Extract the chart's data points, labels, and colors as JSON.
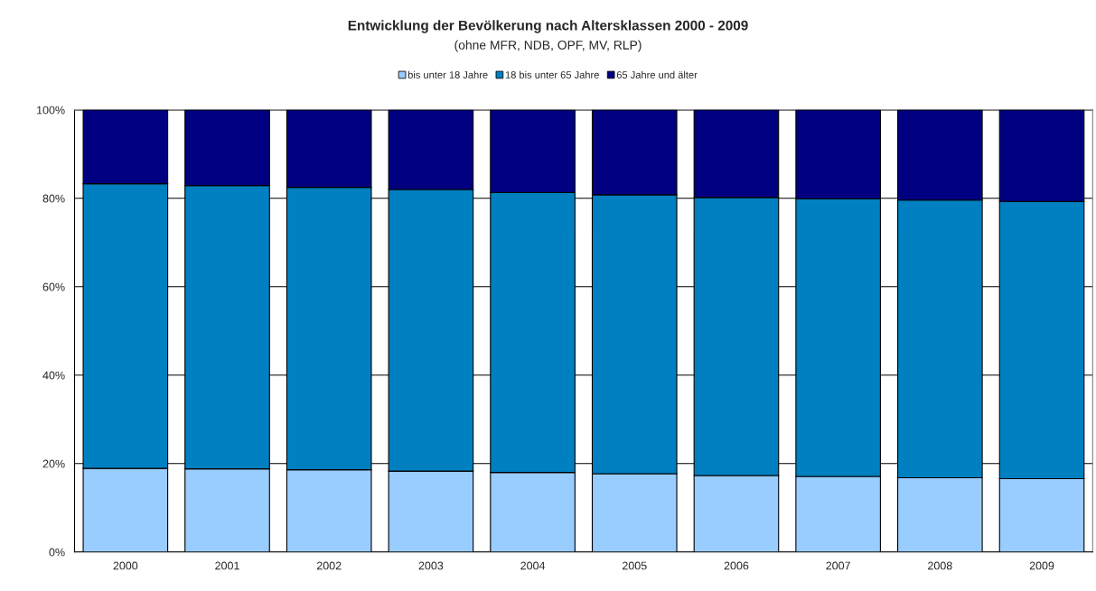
{
  "chart_data": {
    "type": "bar",
    "title": "Entwicklung der Bevölkerung nach Altersklassen 2000 - 2009",
    "subtitle": "(ohne MFR, NDB, OPF, MV, RLP)",
    "categories": [
      "2000",
      "2001",
      "2002",
      "2003",
      "2004",
      "2005",
      "2006",
      "2007",
      "2008",
      "2009"
    ],
    "stacked": true,
    "series": [
      {
        "name": "bis unter 18 Jahre",
        "color": "#99ccff",
        "values": [
          18.9,
          18.8,
          18.6,
          18.3,
          18.0,
          17.7,
          17.3,
          17.1,
          16.8,
          16.6
        ]
      },
      {
        "name": "18 bis unter 65 Jahre",
        "color": "#0080c0",
        "values": [
          64.4,
          64.1,
          63.9,
          63.7,
          63.3,
          63.1,
          62.9,
          62.8,
          62.8,
          62.7
        ]
      },
      {
        "name": "65 Jahre und älter",
        "color": "#000080",
        "values": [
          16.7,
          17.1,
          17.5,
          18.0,
          18.7,
          19.2,
          19.8,
          20.1,
          20.4,
          20.7
        ]
      }
    ],
    "ylim": [
      0,
      100
    ],
    "yticks": [
      {
        "value": 0,
        "label": "0%"
      },
      {
        "value": 20,
        "label": "20%"
      },
      {
        "value": 40,
        "label": "40%"
      },
      {
        "value": 60,
        "label": "60%"
      },
      {
        "value": 80,
        "label": "80%"
      },
      {
        "value": 100,
        "label": "100%"
      }
    ],
    "grid": "y",
    "legend": "top"
  }
}
